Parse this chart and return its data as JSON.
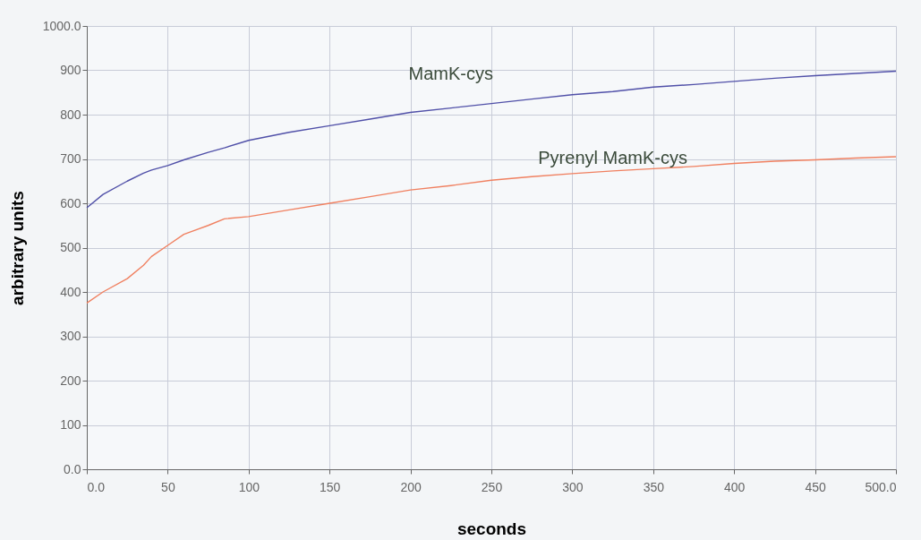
{
  "chart_data": {
    "type": "line",
    "xlabel": "seconds",
    "ylabel": "arbitrary units",
    "x": [
      0,
      10,
      25,
      35,
      40,
      50,
      60,
      75,
      85,
      100,
      125,
      150,
      175,
      200,
      225,
      250,
      275,
      300,
      325,
      350,
      375,
      400,
      425,
      450,
      475,
      500
    ],
    "series": [
      {
        "name": "MamK-cys",
        "color": "#5050a8",
        "values": [
          590,
          620,
          650,
          668,
          675,
          685,
          698,
          715,
          725,
          742,
          760,
          775,
          790,
          805,
          815,
          825,
          835,
          845,
          852,
          862,
          868,
          875,
          882,
          888,
          893,
          898
        ]
      },
      {
        "name": "Pyrenyl MamK-cys",
        "color": "#f08060",
        "values": [
          375,
          400,
          430,
          460,
          480,
          505,
          530,
          550,
          565,
          570,
          585,
          600,
          615,
          630,
          640,
          652,
          660,
          667,
          673,
          678,
          683,
          690,
          695,
          698,
          702,
          705
        ]
      }
    ],
    "xlim": [
      0,
      500
    ],
    "xticks": [
      {
        "value": 0,
        "label": "0.0"
      },
      50,
      100,
      150,
      200,
      250,
      300,
      350,
      400,
      450,
      {
        "value": 500,
        "label": "500.0"
      }
    ],
    "ylim": [
      0,
      1000
    ],
    "yticks": [
      {
        "value": 0,
        "label": "0.0"
      },
      100,
      200,
      300,
      400,
      500,
      600,
      700,
      800,
      900,
      {
        "value": 1000,
        "label": "1000.0"
      }
    ],
    "grid": true,
    "legend": false,
    "marker": "none",
    "line_style": "solid"
  }
}
